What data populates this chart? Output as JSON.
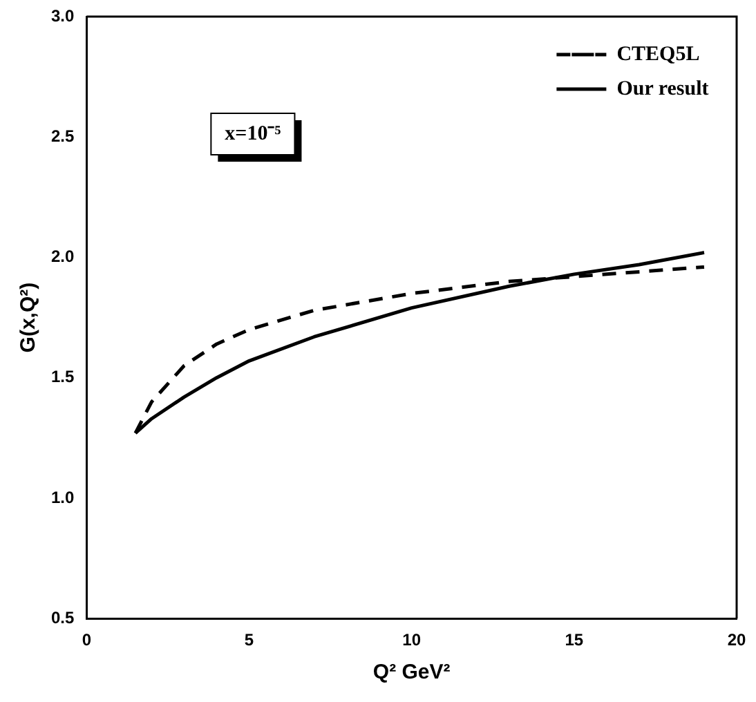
{
  "chart_data": {
    "type": "line",
    "xlabel": "Q² GeV²",
    "ylabel": "G(x,Q²)",
    "annotations": [
      "x=10⁻⁵"
    ],
    "xlim": [
      0,
      20
    ],
    "xticks": [
      0,
      5,
      10,
      15,
      20
    ],
    "ylim": [
      0.5,
      3.0
    ],
    "yticks": [
      {
        "value": 0.5,
        "label": "0.5"
      },
      {
        "value": 1,
        "label": "1.0"
      },
      {
        "value": 1.5,
        "label": "1.5"
      },
      {
        "value": 2,
        "label": "2.0"
      },
      {
        "value": 2.5,
        "label": "2.5"
      },
      {
        "value": 3,
        "label": "3.0"
      }
    ],
    "grid": false,
    "legend": "top right",
    "marker": "none",
    "series": [
      {
        "name": "CTEQ5L",
        "color": "#000000",
        "line_style": "dashed",
        "x": [
          1.5,
          2,
          3,
          4,
          5,
          7,
          10,
          13,
          15,
          17,
          19
        ],
        "values": [
          1.27,
          1.4,
          1.55,
          1.64,
          1.7,
          1.78,
          1.85,
          1.9,
          1.92,
          1.94,
          1.96
        ]
      },
      {
        "name": "Our result",
        "color": "#000000",
        "line_style": "solid",
        "x": [
          1.5,
          2,
          3,
          4,
          5,
          7,
          10,
          13,
          15,
          17,
          19
        ],
        "values": [
          1.27,
          1.33,
          1.42,
          1.5,
          1.57,
          1.67,
          1.79,
          1.88,
          1.93,
          1.97,
          2.02
        ]
      }
    ]
  }
}
